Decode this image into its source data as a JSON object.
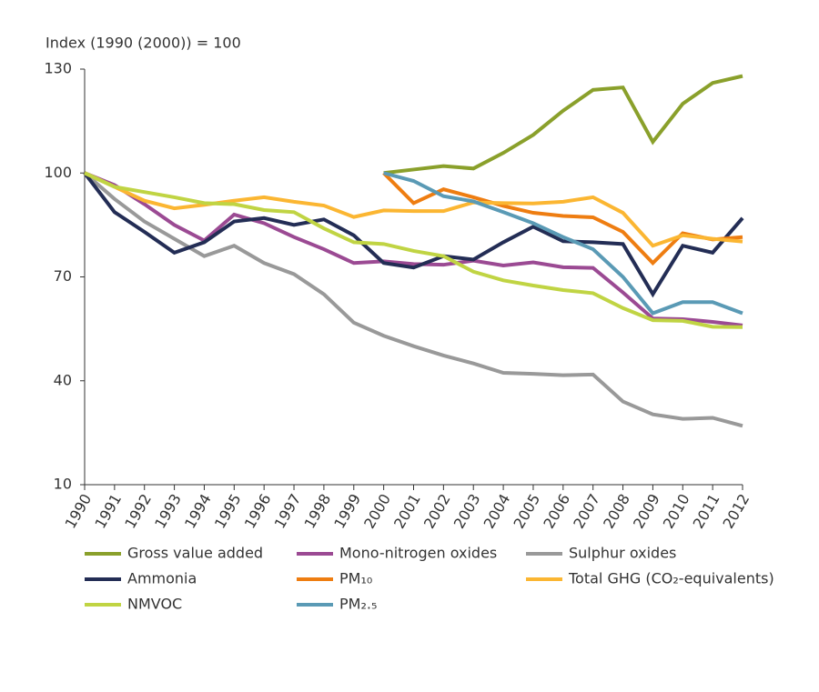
{
  "chart_data": {
    "type": "line",
    "y_axis_label": "Index (1990 (2000)) = 100",
    "categories": [
      "1990",
      "1991",
      "1992",
      "1993",
      "1994",
      "1995",
      "1996",
      "1997",
      "1998",
      "1999",
      "2000",
      "2001",
      "2002",
      "2003",
      "2004",
      "2005",
      "2006",
      "2007",
      "2008",
      "2009",
      "2010",
      "2011",
      "2012"
    ],
    "ylim": [
      10,
      130
    ],
    "yticks": [
      10,
      40,
      70,
      100,
      130
    ],
    "grid": false,
    "series": [
      {
        "name": "Gross value added",
        "color": "#8aa02b",
        "values": [
          null,
          null,
          null,
          null,
          null,
          null,
          null,
          null,
          null,
          null,
          100,
          101,
          102,
          101.3,
          105.8,
          111,
          118,
          124,
          124.7,
          109,
          120,
          126,
          128
        ]
      },
      {
        "name": "Mono-nitrogen oxides",
        "color": "#9b4a93",
        "values": [
          100,
          96.5,
          91,
          85,
          80.5,
          88,
          85.5,
          81.5,
          78,
          74,
          74.5,
          73.7,
          73.5,
          74.7,
          73.3,
          74.2,
          72.8,
          72.6,
          65.5,
          58,
          57.8,
          57,
          56
        ]
      },
      {
        "name": "Sulphur oxides",
        "color": "#999999",
        "values": [
          100,
          92.5,
          86,
          81,
          76,
          79,
          74,
          70.8,
          65,
          56.8,
          53,
          50,
          47.3,
          45,
          42.3,
          42,
          41.6,
          41.8,
          34,
          30.3,
          29,
          29.3,
          27
        ]
      },
      {
        "name": "Ammonia",
        "color": "#232d55",
        "values": [
          100,
          88.7,
          83,
          77,
          80,
          86,
          87,
          85,
          86.6,
          82,
          74,
          72.7,
          76,
          75,
          80,
          84.5,
          80.3,
          80,
          79.5,
          65,
          79,
          77,
          87
        ]
      },
      {
        "name": "PM₁₀",
        "color": "#ee7d11",
        "values": [
          null,
          null,
          null,
          null,
          null,
          null,
          null,
          null,
          null,
          null,
          100,
          91.3,
          95.3,
          93,
          90.5,
          88.5,
          87.6,
          87.2,
          83,
          74,
          82.6,
          80.8,
          81.5
        ]
      },
      {
        "name": "Total GHG (CO₂-equivalents)",
        "color": "#fbb632",
        "values": [
          100,
          96,
          92,
          89.8,
          90.8,
          92,
          93,
          91.7,
          90.6,
          87.3,
          89.2,
          89,
          89,
          91.5,
          91.3,
          91.2,
          91.7,
          93,
          88.5,
          79,
          82,
          81,
          80.2
        ]
      },
      {
        "name": "NMVOC",
        "color": "#c0d443",
        "values": [
          100,
          96,
          94.5,
          93,
          91.3,
          91,
          89.3,
          88.7,
          84,
          80,
          79.5,
          77.5,
          76,
          71.5,
          69,
          67.5,
          66.2,
          65.3,
          61,
          57.5,
          57.3,
          55.6,
          55.5
        ]
      },
      {
        "name": "PM₂.₅",
        "color": "#5a9ab5",
        "values": [
          null,
          null,
          null,
          null,
          null,
          null,
          null,
          null,
          null,
          null,
          100,
          97.7,
          93.3,
          91.8,
          88.7,
          85.5,
          81.5,
          78,
          70,
          59.5,
          62.7,
          62.7,
          59.5
        ]
      }
    ]
  }
}
